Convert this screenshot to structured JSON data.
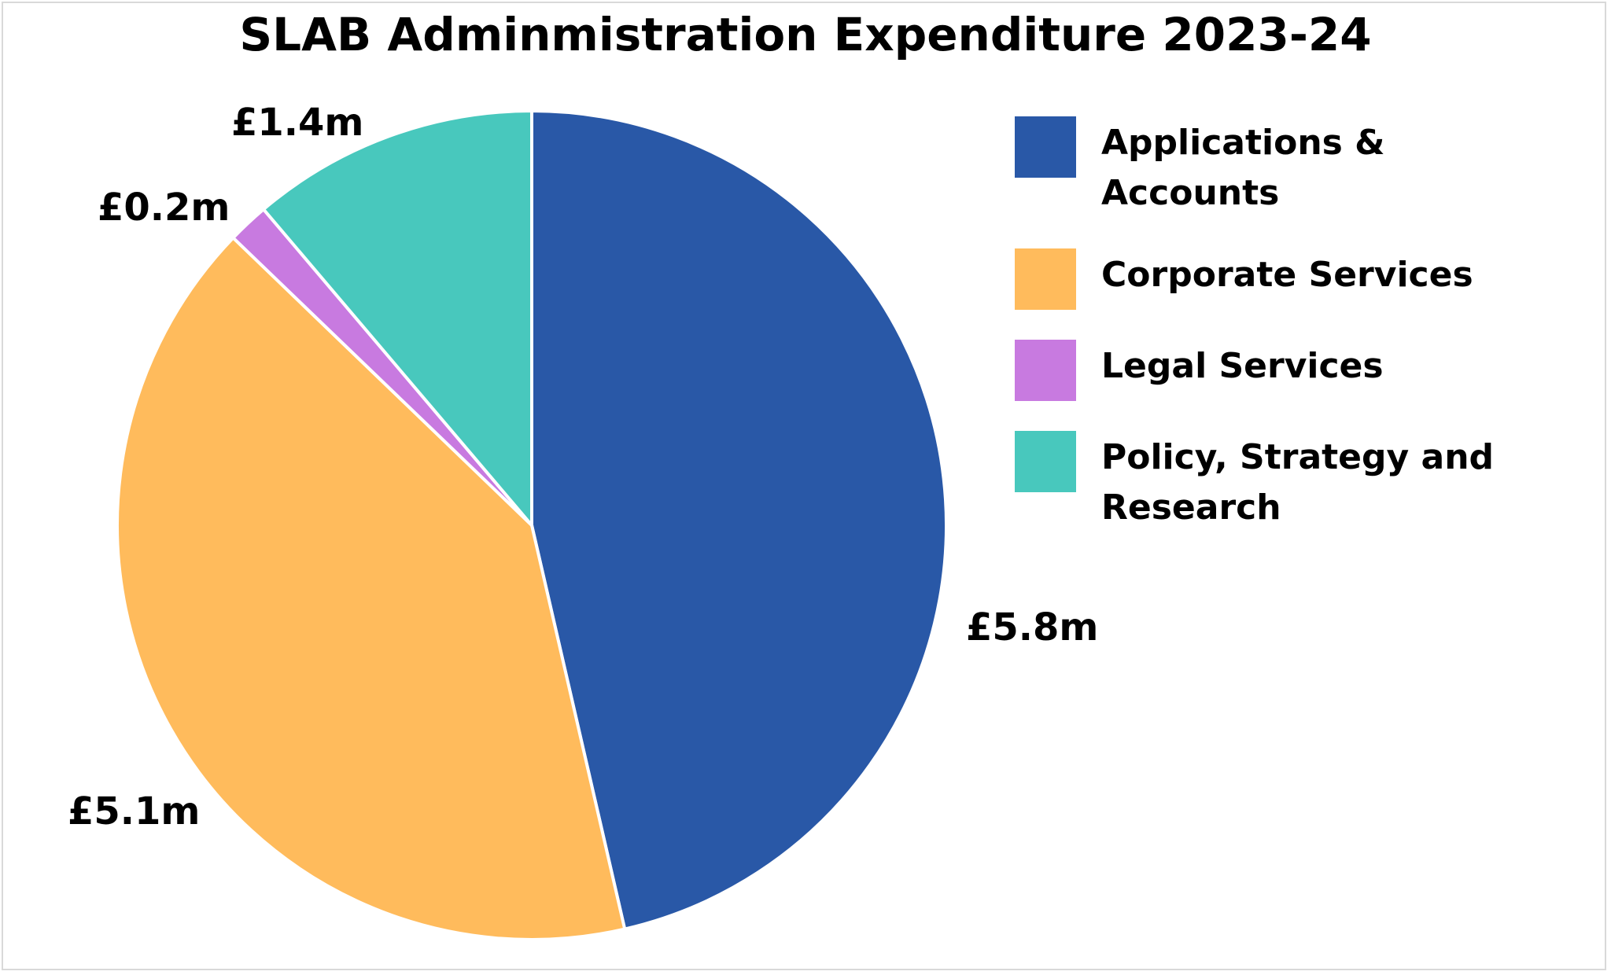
{
  "chart_data": {
    "type": "pie",
    "title": "SLAB Adminmistration Expenditure 2023-24",
    "categories": [
      "Applications & Accounts",
      "Corporate Services",
      "Legal Services",
      "Policy, Strategy and Research"
    ],
    "values": [
      5.8,
      5.1,
      0.2,
      1.4
    ],
    "data_labels": [
      "£5.8m",
      "£5.1m",
      "£0.2m",
      "£1.4m"
    ],
    "colors": [
      "#2958a7",
      "#ffbb5c",
      "#c87ae0",
      "#48c8bd"
    ],
    "legend_position": "right",
    "start_angle": "12 o'clock, clockwise"
  }
}
